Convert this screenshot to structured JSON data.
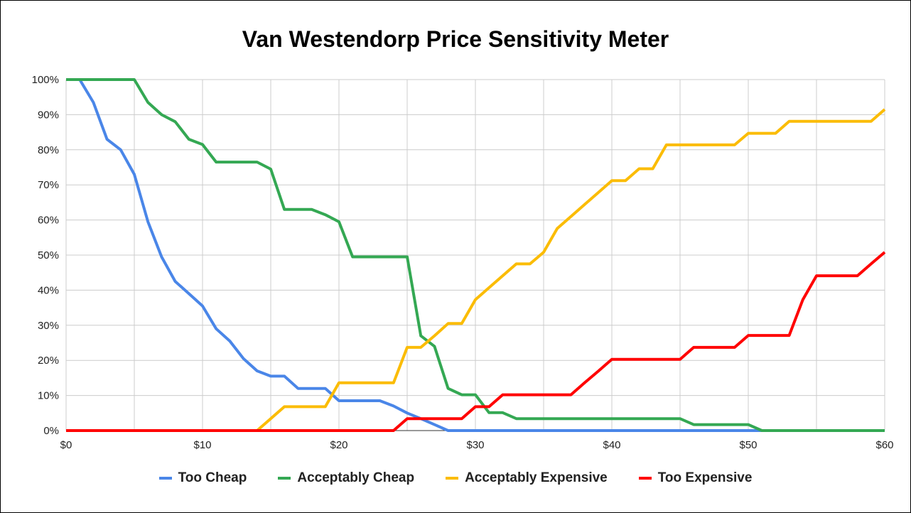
{
  "chart_data": {
    "type": "line",
    "title": "Van Westendorp Price Sensitivity Meter",
    "xlabel": "",
    "ylabel": "",
    "xlim": [
      0,
      60
    ],
    "ylim": [
      0,
      100
    ],
    "x_ticks": [
      "$0",
      "$10",
      "$20",
      "$30",
      "$40",
      "$50",
      "$60"
    ],
    "x_tick_values": [
      0,
      10,
      20,
      30,
      40,
      50,
      60
    ],
    "y_ticks": [
      "0%",
      "10%",
      "20%",
      "30%",
      "40%",
      "50%",
      "60%",
      "70%",
      "80%",
      "90%",
      "100%"
    ],
    "y_tick_values": [
      0,
      10,
      20,
      30,
      40,
      50,
      60,
      70,
      80,
      90,
      100
    ],
    "grid": true,
    "legend_position": "bottom",
    "x": [
      0,
      1,
      2,
      3,
      4,
      5,
      6,
      7,
      8,
      9,
      10,
      11,
      12,
      13,
      14,
      15,
      16,
      17,
      18,
      19,
      20,
      21,
      22,
      23,
      24,
      25,
      26,
      27,
      28,
      29,
      30,
      31,
      32,
      33,
      34,
      35,
      36,
      37,
      38,
      39,
      40,
      41,
      42,
      43,
      44,
      45,
      46,
      47,
      48,
      49,
      50,
      51,
      52,
      53,
      54,
      55,
      56,
      57,
      58,
      59,
      60
    ],
    "series": [
      {
        "name": "Too Cheap",
        "color": "#4a86e8",
        "values": [
          100,
          100,
          93.5,
          83,
          80,
          73,
          59.5,
          49.5,
          42.5,
          39,
          35.5,
          29,
          25.5,
          20.5,
          17,
          15.5,
          15.5,
          12,
          12,
          12,
          8.5,
          8.5,
          8.5,
          8.5,
          7,
          5,
          3.4,
          1.7,
          0,
          0,
          0,
          0,
          0,
          0,
          0,
          0,
          0,
          0,
          0,
          0,
          0,
          0,
          0,
          0,
          0,
          0,
          0,
          0,
          0,
          0,
          0,
          0,
          0,
          0,
          0,
          0,
          0,
          0,
          0,
          0,
          0
        ]
      },
      {
        "name": "Acceptably Cheap",
        "color": "#34a853",
        "values": [
          100,
          100,
          100,
          100,
          100,
          100,
          93.5,
          90,
          88,
          83,
          81.5,
          76.5,
          76.5,
          76.5,
          76.5,
          74.5,
          63,
          63,
          63,
          61.5,
          59.5,
          49.5,
          49.5,
          49.5,
          49.5,
          49.5,
          27,
          24,
          12,
          10.2,
          10.2,
          5.1,
          5.1,
          3.4,
          3.4,
          3.4,
          3.4,
          3.4,
          3.4,
          3.4,
          3.4,
          3.4,
          3.4,
          3.4,
          3.4,
          3.4,
          1.7,
          1.7,
          1.7,
          1.7,
          1.7,
          0,
          0,
          0,
          0,
          0,
          0,
          0,
          0,
          0,
          0
        ]
      },
      {
        "name": "Acceptably Expensive",
        "color": "#fbbc04",
        "values": [
          0,
          0,
          0,
          0,
          0,
          0,
          0,
          0,
          0,
          0,
          0,
          0,
          0,
          0,
          0,
          3.4,
          6.8,
          6.8,
          6.8,
          6.8,
          13.6,
          13.6,
          13.6,
          13.6,
          13.6,
          23.7,
          23.7,
          27,
          30.5,
          30.5,
          37.3,
          40.7,
          44.1,
          47.5,
          47.5,
          50.8,
          57.6,
          61,
          64.4,
          67.8,
          71.2,
          71.2,
          74.6,
          74.6,
          81.4,
          81.4,
          81.4,
          81.4,
          81.4,
          81.4,
          84.7,
          84.7,
          84.7,
          88.1,
          88.1,
          88.1,
          88.1,
          88.1,
          88.1,
          88.1,
          91.5
        ]
      },
      {
        "name": "Too Expensive",
        "color": "#ff0000",
        "values": [
          0,
          0,
          0,
          0,
          0,
          0,
          0,
          0,
          0,
          0,
          0,
          0,
          0,
          0,
          0,
          0,
          0,
          0,
          0,
          0,
          0,
          0,
          0,
          0,
          0,
          3.4,
          3.4,
          3.4,
          3.4,
          3.4,
          6.8,
          6.8,
          10.2,
          10.2,
          10.2,
          10.2,
          10.2,
          10.2,
          13.6,
          16.9,
          20.3,
          20.3,
          20.3,
          20.3,
          20.3,
          20.3,
          23.7,
          23.7,
          23.7,
          23.7,
          27.1,
          27.1,
          27.1,
          27.1,
          37.3,
          44.1,
          44.1,
          44.1,
          44.1,
          47.5,
          50.8
        ]
      }
    ]
  }
}
